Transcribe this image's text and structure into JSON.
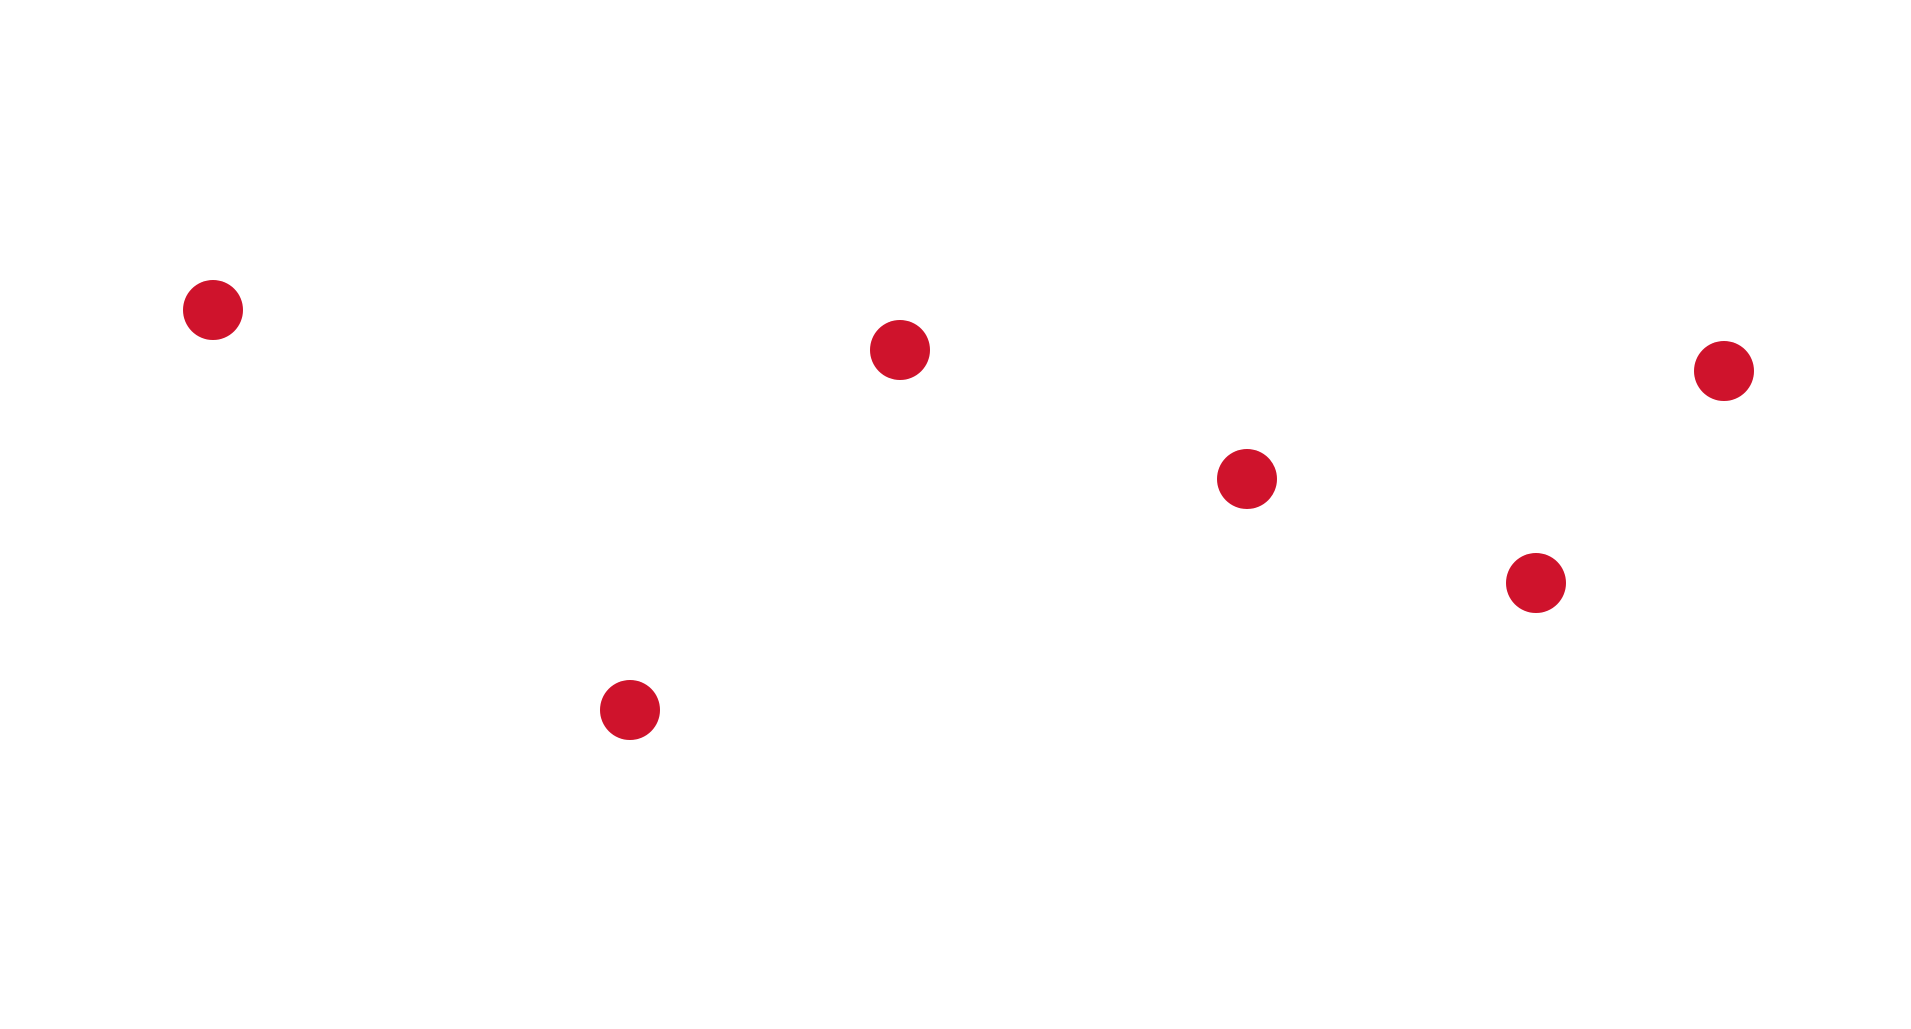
{
  "colors": {
    "background": "#ffffff",
    "dot": "#cf132c"
  },
  "dots": [
    {
      "id": "dot-1"
    },
    {
      "id": "dot-2"
    },
    {
      "id": "dot-3"
    },
    {
      "id": "dot-4"
    },
    {
      "id": "dot-5"
    },
    {
      "id": "dot-6"
    }
  ]
}
